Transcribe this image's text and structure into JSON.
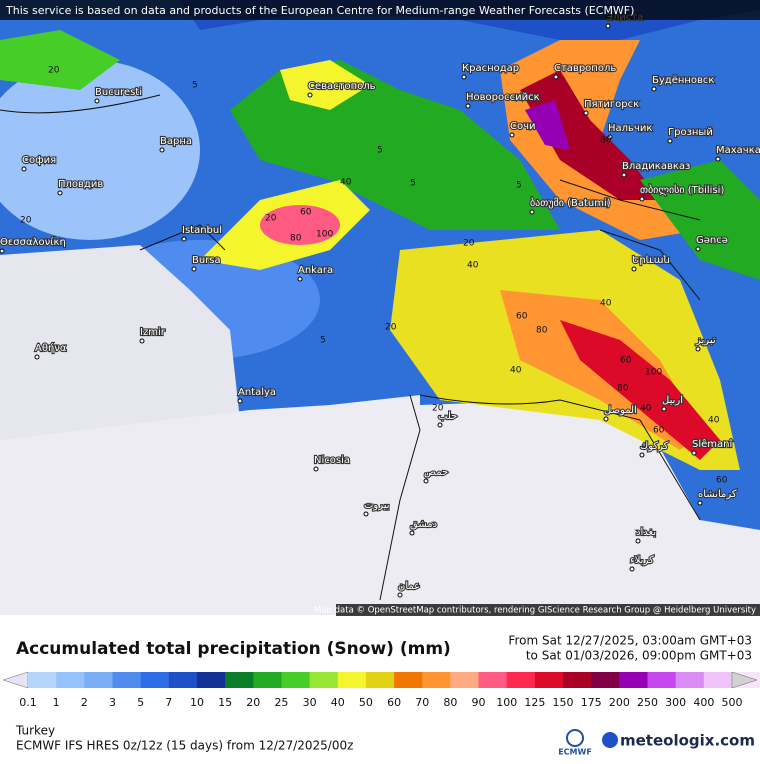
{
  "notice": "This service is based on data and products of the European Centre for Medium-range Weather Forecasts (ECMWF)",
  "cities": [
    "Bucuresti",
    "Варна",
    "София",
    "Пловдив",
    "Θεσσαλονίκη",
    "Istanbul",
    "Bursa",
    "Ankara",
    "Izmir",
    "Αθήνα",
    "Antalya",
    "Nicosia",
    "Севастополь",
    "Краснодар",
    "Новороссийск",
    "Сочи",
    "Ставрополь",
    "Пятигорск",
    "Нальчик",
    "Грозный",
    "Владикавказ",
    "Будённовск",
    "Махачка",
    "Элиста",
    "ბათუმი (Batumi)",
    "თბილისი (Tbilisi)",
    "Gəncə",
    "Երևան",
    "تبريز",
    "حلب",
    "حمص",
    "بيروت",
    "دمشق",
    "عمان",
    "الموصل",
    "اربيل",
    "كركوك",
    "Slêmanî",
    "كرمانشاه",
    "بغداد",
    "كربلاء"
  ],
  "contours": [
    "20",
    "5",
    "5",
    "20",
    "40",
    "60",
    "80",
    "100",
    "20",
    "40",
    "80",
    "60",
    "40",
    "20",
    "5",
    "40",
    "60",
    "80",
    "100",
    "40",
    "60",
    "80",
    "5",
    "20",
    "40",
    "60",
    "5",
    "20"
  ],
  "attribution": "Map data © OpenStreetMap contributors, rendering GIScience Research Group @ Heidelberg University",
  "title": "Accumulated total precipitation (Snow) (mm)",
  "valid_from": "From Sat 12/27/2025, 03:00am GMT+03",
  "valid_to": "to Sat 01/03/2026, 09:00pm GMT+03",
  "legend": {
    "ticks": [
      0.1,
      1,
      2,
      3,
      5,
      7,
      10,
      15,
      20,
      25,
      30,
      40,
      50,
      60,
      70,
      80,
      90,
      100,
      125,
      150,
      175,
      200,
      250,
      300,
      400,
      500
    ],
    "colors": [
      "#e4e4f4",
      "#b4d4fa",
      "#96c3fa",
      "#78aff5",
      "#508cf0",
      "#2d6ee6",
      "#1e50c8",
      "#143296",
      "#0a7d28",
      "#23aa23",
      "#46cd28",
      "#96e632",
      "#f5f52d",
      "#e1d214",
      "#f07800",
      "#ff9632",
      "#ffaa82",
      "#ff5a82",
      "#ff2850",
      "#dc0a28",
      "#aa0028",
      "#820046",
      "#9600b4",
      "#c846f0",
      "#dc8cf5",
      "#f0c3fa",
      "#f5e6fa",
      "#d2d2d2"
    ]
  },
  "region": "Turkey",
  "model": "ECMWF IFS HRES 0z/12z (15 days) from 12/27/2025/00z",
  "logos": [
    "ECMWF",
    "meteologix.com"
  ]
}
